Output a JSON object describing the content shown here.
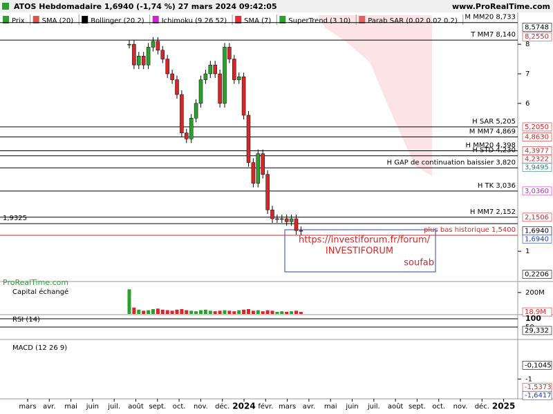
{
  "header": {
    "title": "ATOS Hebdomadaire 1,6940 (-1,74 %) 27 mars 2024 09:42:05",
    "site": "www.ProRealTime.com"
  },
  "legend": [
    {
      "name": "Prix",
      "color": "#2ca02c"
    },
    {
      "name": "SMA (20)",
      "color": "#d9534f"
    },
    {
      "name": "Bollinger (20 2)",
      "color": "#000000"
    },
    {
      "name": "Ichimoku (9 26 52)",
      "color": "#d020d0"
    },
    {
      "name": "SMA (7)",
      "color": "#e03030"
    },
    {
      "name": "SuperTrend (3 10)",
      "color": "#2ca02c"
    },
    {
      "name": "Parab SAR (0.02 0.02 0.2)",
      "color": "#e06060"
    }
  ],
  "price": {
    "ylim": [
      0,
      9.03
    ],
    "yticks": [
      8,
      7,
      6,
      1
    ],
    "closes": [
      8.0,
      7.3,
      7.6,
      7.3,
      7.9,
      8.1,
      7.8,
      7.5,
      7.0,
      6.8,
      6.3,
      5.0,
      4.8,
      5.5,
      6.0,
      6.8,
      7.0,
      7.3,
      7.0,
      6.0,
      7.9,
      7.5,
      6.8,
      6.9,
      5.6,
      4.0,
      3.3,
      4.3,
      3.6,
      2.4,
      2.1,
      2.1,
      2.1,
      2.0,
      2.1,
      1.7,
      1.694
    ],
    "up_color": "#2ca02c",
    "down_color": "#d62728",
    "levels": [
      {
        "label": "M MM20 8,733",
        "value": 8.733
      },
      {
        "label": "T MM7 8,140",
        "value": 8.14
      },
      {
        "label": "H SAR 5,205",
        "value": 5.205
      },
      {
        "label": "M MM7 4,869",
        "value": 4.869
      },
      {
        "label": "H MM20 4,398",
        "value": 4.398
      },
      {
        "label": "H STD 4,230",
        "value": 4.23
      },
      {
        "label": "H GAP de continuation baissier 3,820",
        "value": 3.82
      },
      {
        "label": "H TK 3,036",
        "value": 3.036
      },
      {
        "label": "H MM7 2,152",
        "value": 2.152
      }
    ],
    "low_line": {
      "label": "plus bas historique 1,5400",
      "value": 1.54,
      "color": "#d62728"
    },
    "left_line": {
      "label": "1,9325",
      "value": 1.9325
    },
    "tags": [
      {
        "value": 8.5748,
        "label": "8,5748",
        "color": "#000000"
      },
      {
        "value": 8.255,
        "label": "8,2550",
        "color": "#d62728"
      },
      {
        "value": 5.205,
        "label": "5,2050",
        "color": "#d62728"
      },
      {
        "value": 4.863,
        "label": "4,8630",
        "color": "#d62728"
      },
      {
        "value": 4.3977,
        "label": "4,3977",
        "color": "#d62728"
      },
      {
        "value": 4.2322,
        "label": "4,2322",
        "color": "#d62728"
      },
      {
        "value": 3.9495,
        "label": "3,9495",
        "color": "#2a7f7f"
      },
      {
        "value": 3.036,
        "label": "3,0360",
        "color": "#d020d0"
      },
      {
        "value": 2.1506,
        "label": "2,1506",
        "color": "#d62728"
      },
      {
        "value": 1.694,
        "label": "1,6940",
        "color": "#000000"
      },
      {
        "value": 1.694,
        "label": "1,6940",
        "color": "#1f3fbf"
      },
      {
        "value": 0.2206,
        "label": "0,2206",
        "color": "#000000"
      }
    ]
  },
  "annotation": {
    "lines": [
      "https://investiforum.fr/forum/",
      "INVESTIFORUM",
      "soufab"
    ],
    "color": "#d62728"
  },
  "watermark": "ProRealTime.com",
  "volume": {
    "label": "Capital échangé",
    "ylim": [
      0,
      264
    ],
    "yticks": [
      {
        "value": 200,
        "label": "200M"
      }
    ],
    "values": [
      230,
      60,
      40,
      30,
      35,
      45,
      50,
      40,
      35,
      30,
      40,
      45,
      35,
      30,
      25,
      35,
      40,
      30,
      25,
      30,
      35,
      30,
      25,
      35,
      40,
      45,
      30,
      35,
      25,
      35,
      30,
      20,
      25,
      20,
      25,
      30,
      19
    ],
    "tag": {
      "value": 18.9,
      "label": "18,9M",
      "color": "#d62728"
    }
  },
  "rsi": {
    "label": "RSI (14)",
    "ylim": [
      -12.5,
      125
    ],
    "yticks": [
      100,
      50
    ],
    "tag": {
      "value": 29.332,
      "label": "29,332",
      "color": "#000000"
    }
  },
  "macd": {
    "label": "MACD (12 26 9)",
    "ylim": [
      -2.2,
      1.48
    ],
    "yticks": [
      -1
    ],
    "tags": [
      {
        "value": -0.1045,
        "label": "-0,1045",
        "color": "#000000"
      },
      {
        "value": -1.5373,
        "label": "-1,5373",
        "color": "#d62728"
      },
      {
        "value": -1.6417,
        "label": "-1,6417",
        "color": "#1f3fbf"
      }
    ]
  },
  "months": [
    "mars",
    "avr.",
    "mai",
    "juin",
    "juil.",
    "août",
    "sept.",
    "oct.",
    "nov.",
    "déc.",
    "2024",
    "févr.",
    "mars",
    "avr.",
    "mai",
    "juin",
    "juil.",
    "août",
    "sept.",
    "oct.",
    "nov.",
    "déc.",
    "2025"
  ]
}
